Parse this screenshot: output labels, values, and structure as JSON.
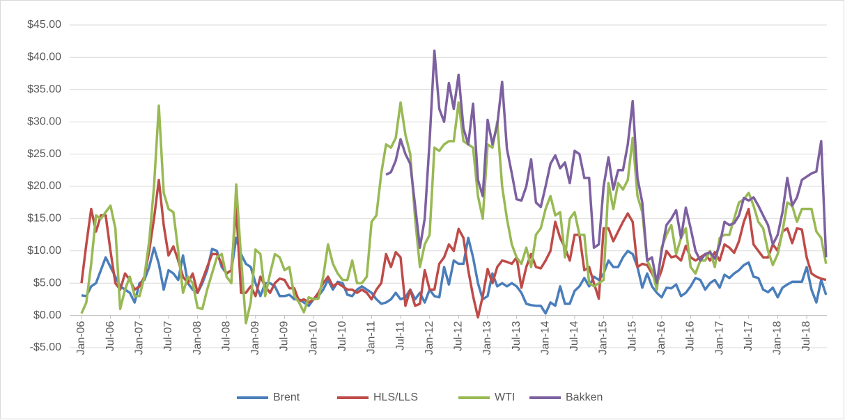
{
  "chart_data": {
    "type": "line",
    "categories": [
      "Jan-06",
      null,
      null,
      null,
      null,
      null,
      "Jul-06",
      null,
      null,
      null,
      null,
      null,
      "Jan-07",
      null,
      null,
      null,
      null,
      null,
      "Jul-07",
      null,
      null,
      null,
      null,
      null,
      "Jan-08",
      null,
      null,
      null,
      null,
      null,
      "Jul-08",
      null,
      null,
      null,
      null,
      null,
      "Jan-09",
      null,
      null,
      null,
      null,
      null,
      "Jul-09",
      null,
      null,
      null,
      null,
      null,
      "Jan-10",
      null,
      null,
      null,
      null,
      null,
      "Jul-10",
      null,
      null,
      null,
      null,
      null,
      "Jan-11",
      null,
      null,
      null,
      null,
      null,
      "Jul-11",
      null,
      null,
      null,
      null,
      null,
      "Jan-12",
      null,
      null,
      null,
      null,
      null,
      "Jul-12",
      null,
      null,
      null,
      null,
      null,
      "Jan-13",
      null,
      null,
      null,
      null,
      null,
      "Jul-13",
      null,
      null,
      null,
      null,
      null,
      "Jan-14",
      null,
      null,
      null,
      null,
      null,
      "Jul-14",
      null,
      null,
      null,
      null,
      null,
      "Jan-15",
      null,
      null,
      null,
      null,
      null,
      "Jul-15",
      null,
      null,
      null,
      null,
      null,
      "Jan-16",
      null,
      null,
      null,
      null,
      null,
      "Jul-16",
      null,
      null,
      null,
      null,
      null,
      "Jan-17",
      null,
      null,
      null,
      null,
      null,
      "Jul-17",
      null,
      null,
      null,
      null,
      null,
      "Jan-18",
      null,
      null,
      null,
      null,
      null,
      "Jul-18",
      null,
      null,
      null,
      null
    ],
    "series": [
      {
        "name": "Brent",
        "color": "#4a7ebb",
        "values": [
          3.1,
          3,
          4.5,
          5,
          7,
          9,
          7.5,
          6,
          4.5,
          4,
          3.5,
          2,
          5,
          5.5,
          7.5,
          10.5,
          8,
          4,
          7,
          6.5,
          5.5,
          9.3,
          5,
          4,
          3.5,
          5,
          7,
          10.3,
          10,
          7.5,
          6.5,
          7,
          12,
          9.5,
          8,
          7.5,
          5,
          3,
          5,
          5,
          4.5,
          3,
          3,
          3.2,
          2.5,
          2.5,
          2,
          1.5,
          2.5,
          3,
          4,
          5.5,
          4,
          5.2,
          5,
          3.2,
          3,
          4,
          4.5,
          4,
          3.5,
          2.5,
          1.8,
          2,
          2.5,
          3.5,
          2.5,
          2.8,
          4,
          2.5,
          3.5,
          2,
          4,
          3,
          2.8,
          7.5,
          4.8,
          8.5,
          8,
          8,
          12,
          9,
          5,
          2.5,
          3,
          6.5,
          4.5,
          5,
          4.5,
          5,
          4.5,
          3.5,
          1.8,
          1.6,
          1.5,
          1.5,
          0.3,
          2,
          1.5,
          4.5,
          1.8,
          1.8,
          3.8,
          4.5,
          5.8,
          4.5,
          6,
          5.5,
          6.5,
          8.5,
          7.5,
          7.5,
          9,
          10,
          9.5,
          7.5,
          4.3,
          6.5,
          4.5,
          3.5,
          2.8,
          4.3,
          4.2,
          4.8,
          3,
          3.5,
          4.5,
          5.8,
          5.5,
          4,
          5,
          5.5,
          4.3,
          6.3,
          5.8,
          6.5,
          7,
          7.8,
          8.2,
          6,
          5.8,
          4,
          3.6,
          4.3,
          2.8,
          4.3,
          4.8,
          5.2,
          5.2,
          5.2,
          7.5,
          4,
          2,
          5.5,
          3.2
        ]
      },
      {
        "name": "HLS/LLS",
        "color": "#be4b48",
        "values": [
          5,
          11,
          16.5,
          13,
          15.5,
          15.5,
          10,
          5,
          4,
          6.5,
          5.5,
          4,
          4.5,
          6,
          10,
          15,
          21,
          14,
          9.3,
          10.7,
          8.5,
          6,
          5,
          6.5,
          3.5,
          5.5,
          7.5,
          9.5,
          9.5,
          8,
          6.5,
          7,
          16.8,
          3.5,
          3.5,
          4.5,
          3,
          6,
          4.5,
          3.5,
          5,
          5.7,
          5.5,
          4.2,
          4.2,
          2.2,
          2.5,
          2,
          2.5,
          3.5,
          5,
          6,
          4.5,
          5,
          4.5,
          4,
          4,
          3.5,
          4,
          3.5,
          2.5,
          4,
          5,
          9.5,
          7.5,
          9.8,
          9,
          1.5,
          4,
          1.5,
          1.8,
          7,
          4,
          4,
          8,
          9,
          11,
          10,
          13.4,
          12,
          7,
          3,
          -0.3,
          3,
          7.2,
          5,
          7.5,
          8.5,
          8.3,
          8,
          9,
          4.3,
          7.5,
          9.5,
          7.5,
          7.3,
          8.5,
          10,
          14.5,
          12,
          10.5,
          8.5,
          12.5,
          12.5,
          7,
          7.5,
          5,
          2.6,
          13.5,
          13.5,
          11.5,
          13,
          14.5,
          15.8,
          14.5,
          7.5,
          8,
          7.8,
          6.5,
          5,
          7,
          10,
          9,
          9.2,
          8.5,
          10.8,
          9,
          8.5,
          9,
          9.5,
          8.5,
          9.8,
          8.5,
          11,
          10.5,
          9.7,
          11.5,
          14.5,
          16.5,
          11,
          10,
          9,
          9,
          11,
          10,
          13,
          13.5,
          11.2,
          13.5,
          13.3,
          9,
          6.5,
          6,
          5.7,
          5.5
        ]
      },
      {
        "name": "WTI",
        "color": "#98b954",
        "values": [
          0.3,
          2,
          8,
          15.5,
          15,
          16,
          17,
          13.5,
          1,
          4,
          6,
          3,
          3,
          6,
          11.5,
          20,
          32.5,
          19,
          16.5,
          16,
          10,
          3.5,
          6,
          5,
          1.2,
          1,
          4,
          6.5,
          9,
          9.5,
          6,
          5,
          20.3,
          9,
          -1.2,
          2,
          10.2,
          9.5,
          3,
          6.5,
          9.5,
          9,
          7,
          7.5,
          3,
          2,
          0.5,
          2.8,
          2.5,
          2.6,
          6,
          11,
          8,
          6.5,
          5.5,
          5.5,
          8.5,
          5,
          5,
          6,
          14.5,
          15.5,
          22,
          26.5,
          26,
          27.5,
          33,
          28,
          25,
          15,
          7.5,
          11,
          12.5,
          26,
          25.5,
          26.5,
          27,
          27,
          33,
          27,
          26.5,
          26,
          18.5,
          15,
          26.5,
          26,
          30,
          20,
          15,
          11,
          9,
          8,
          10.5,
          7.5,
          12.5,
          13.5,
          16.5,
          18.5,
          15.5,
          16,
          9,
          15,
          16,
          12.5,
          12.5,
          5,
          4.5,
          5,
          5.5,
          20.5,
          16.5,
          20.5,
          19.5,
          21,
          27.5,
          18.5,
          16,
          8.5,
          7,
          4,
          10.5,
          12.5,
          14,
          9.5,
          12,
          13.5,
          7.5,
          6.5,
          8.5,
          8.5,
          10,
          7.5,
          12,
          12.5,
          12.5,
          15,
          17.5,
          18,
          19,
          17,
          14.5,
          13.5,
          10,
          7.8,
          9.5,
          13,
          17.5,
          17,
          14.5,
          16.5,
          16.5,
          16.5,
          13,
          12,
          8
        ]
      },
      {
        "name": "Bakken",
        "color": "#7d60a0",
        "values": [
          null,
          null,
          null,
          null,
          null,
          null,
          null,
          null,
          null,
          null,
          null,
          null,
          null,
          null,
          null,
          null,
          null,
          null,
          null,
          null,
          null,
          null,
          null,
          null,
          null,
          null,
          null,
          null,
          null,
          null,
          null,
          null,
          null,
          null,
          null,
          null,
          null,
          null,
          null,
          null,
          null,
          null,
          null,
          null,
          null,
          null,
          null,
          null,
          null,
          null,
          null,
          null,
          null,
          null,
          null,
          null,
          null,
          null,
          null,
          null,
          null,
          null,
          null,
          21.8,
          22.2,
          24,
          27.3,
          25,
          23.5,
          17,
          10.5,
          15,
          27,
          41,
          32,
          30,
          36,
          32,
          37.3,
          29,
          26.5,
          32.8,
          21,
          18.5,
          30.3,
          26.5,
          29.5,
          36.2,
          25.8,
          22,
          18,
          17.8,
          20,
          24.2,
          17.5,
          16.8,
          20,
          23.5,
          24.8,
          22.8,
          23.7,
          20.5,
          25.5,
          25,
          21.3,
          21.3,
          10.5,
          11,
          20,
          24.5,
          19.5,
          22.5,
          22.5,
          26.5,
          33.2,
          21.3,
          17.5,
          8.5,
          9,
          5,
          10,
          14,
          15,
          16.3,
          12,
          16.7,
          13.5,
          10,
          8.5,
          9.5,
          9.8,
          8.8,
          11,
          14.5,
          14,
          14.3,
          15.5,
          18.2,
          17.8,
          18.3,
          17,
          15.5,
          14,
          11,
          12.5,
          16,
          21.3,
          17,
          18.3,
          21,
          21.5,
          22,
          22.3,
          27,
          9
        ]
      }
    ],
    "ylim": [
      -5,
      45
    ],
    "yticks": [
      {
        "value": -5,
        "label": "-$5.00"
      },
      {
        "value": 0,
        "label": "$0.00"
      },
      {
        "value": 5,
        "label": "$5.00"
      },
      {
        "value": 10,
        "label": "$10.00"
      },
      {
        "value": 15,
        "label": "$15.00"
      },
      {
        "value": 20,
        "label": "$20.00"
      },
      {
        "value": 25,
        "label": "$25.00"
      },
      {
        "value": 30,
        "label": "$30.00"
      },
      {
        "value": 35,
        "label": "$35.00"
      },
      {
        "value": 40,
        "label": "$40.00"
      },
      {
        "value": 45,
        "label": "$45.00"
      }
    ],
    "grid": true,
    "legend": "bottom"
  }
}
